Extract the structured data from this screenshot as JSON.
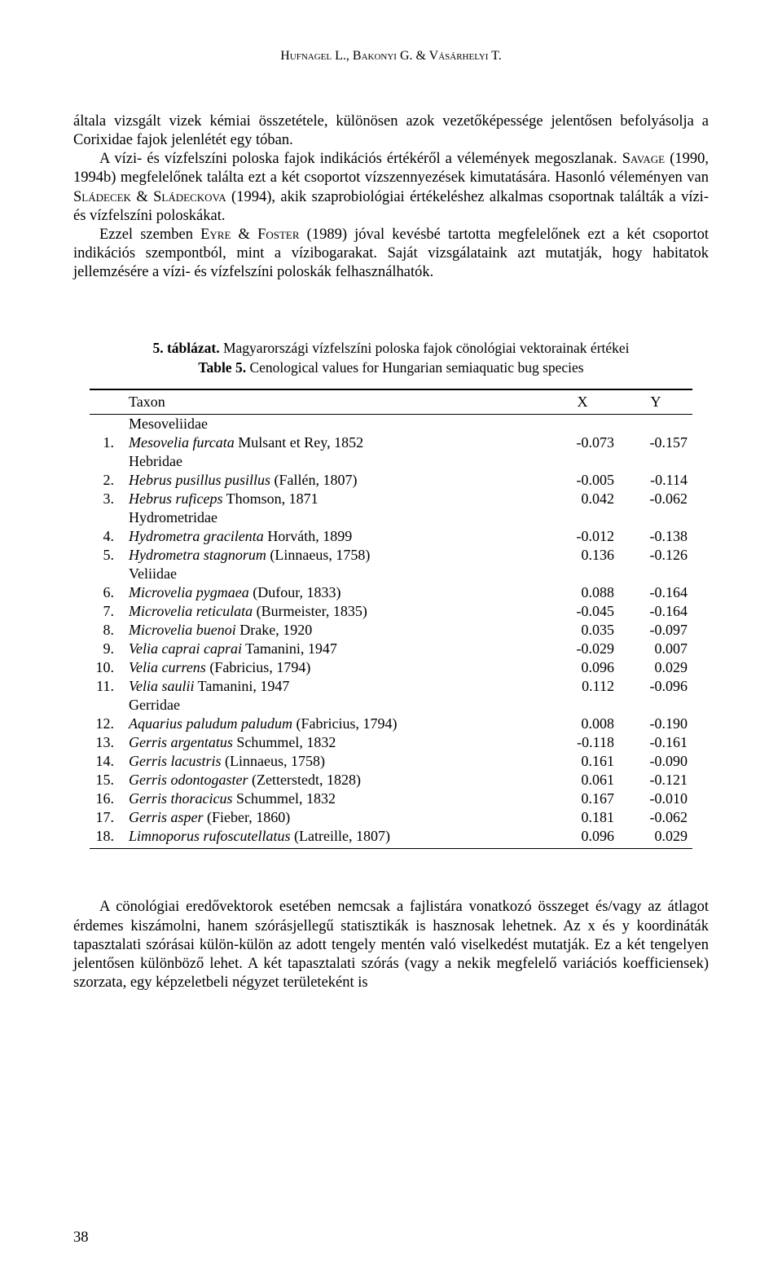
{
  "header": {
    "running": "Hufnagel L., Bakonyi G. & Vásárhelyi T."
  },
  "paragraphs": {
    "p1": "általa vizsgált vizek kémiai összetétele, különösen azok vezetőképessége jelentősen befolyásolja a Corixidae fajok jelenlétét egy tóban.",
    "p2_a": "A vízi- és vízfelszíni poloska fajok indikációs értékéről a vélemények megoszlanak. ",
    "p2_b": "Savage",
    "p2_c": " (1990, 1994b) megfelelőnek találta ezt a két csoportot vízszennyezések kimutatására. Hasonló véleményen van ",
    "p2_d": "Sládecek & Sládeckova",
    "p2_e": " (1994), akik szaprobiológiai értékeléshez alkalmas csoportnak találták a vízi- és vízfelszíni poloskákat.",
    "p3_a": "Ezzel szemben ",
    "p3_b": "Eyre & Foster",
    "p3_c": " (1989) jóval kevésbé tartotta megfelelőnek ezt a két csoportot indikációs szempontból, mint a vízibogarakat. Saját vizsgálataink azt mutatják, hogy habitatok jellemzésére a vízi- és vízfelszíni poloskák felhasználhatók."
  },
  "table": {
    "title_bold": "5. táblázat.",
    "title_rest": " Magyarországi vízfelszíni poloska fajok cönológiai vektorainak értékei",
    "subtitle_bold": "Table 5.",
    "subtitle_rest": " Cenological values for Hungarian semiaquatic bug species",
    "headers": {
      "taxon": "Taxon",
      "x": "X",
      "y": "Y"
    },
    "rows": [
      {
        "kind": "family",
        "taxon_plain": "Mesoveliidae"
      },
      {
        "kind": "species",
        "num": "1.",
        "species": "Mesovelia furcata",
        "auth": " Mulsant et Rey, 1852",
        "x": "-0.073",
        "y": "-0.157"
      },
      {
        "kind": "family",
        "taxon_plain": "Hebridae"
      },
      {
        "kind": "species",
        "num": "2.",
        "species": "Hebrus pusillus pusillus",
        "auth": " (Fallén, 1807)",
        "x": "-0.005",
        "y": "-0.114"
      },
      {
        "kind": "species",
        "num": "3.",
        "species": "Hebrus ruficeps",
        "auth": " Thomson, 1871",
        "x": "0.042",
        "y": "-0.062"
      },
      {
        "kind": "family",
        "taxon_plain": "Hydrometridae"
      },
      {
        "kind": "species",
        "num": "4.",
        "species": "Hydrometra gracilenta",
        "auth": " Horváth, 1899",
        "x": "-0.012",
        "y": "-0.138"
      },
      {
        "kind": "species",
        "num": "5.",
        "species": "Hydrometra stagnorum",
        "auth": " (Linnaeus, 1758)",
        "x": "0.136",
        "y": "-0.126"
      },
      {
        "kind": "family",
        "taxon_plain": "Veliidae"
      },
      {
        "kind": "species",
        "num": "6.",
        "species": "Microvelia pygmaea",
        "auth": " (Dufour, 1833)",
        "x": "0.088",
        "y": "-0.164"
      },
      {
        "kind": "species",
        "num": "7.",
        "species": "Microvelia reticulata",
        "auth": " (Burmeister, 1835)",
        "x": "-0.045",
        "y": "-0.164"
      },
      {
        "kind": "species",
        "num": "8.",
        "species": "Microvelia buenoi",
        "auth": " Drake, 1920",
        "x": "0.035",
        "y": "-0.097"
      },
      {
        "kind": "species",
        "num": "9.",
        "species": "Velia caprai caprai",
        "auth": " Tamanini, 1947",
        "x": "-0.029",
        "y": "0.007"
      },
      {
        "kind": "species",
        "num": "10.",
        "species": "Velia currens",
        "auth": " (Fabricius, 1794)",
        "x": "0.096",
        "y": "0.029"
      },
      {
        "kind": "species",
        "num": "11.",
        "species": "Velia saulii",
        "auth": " Tamanini, 1947",
        "x": "0.112",
        "y": "-0.096"
      },
      {
        "kind": "family",
        "taxon_plain": "Gerridae"
      },
      {
        "kind": "species",
        "num": "12.",
        "species": "Aquarius paludum paludum",
        "auth": " (Fabricius, 1794)",
        "x": "0.008",
        "y": "-0.190"
      },
      {
        "kind": "species",
        "num": "13.",
        "species": "Gerris argentatus",
        "auth": " Schummel, 1832",
        "x": "-0.118",
        "y": "-0.161"
      },
      {
        "kind": "species",
        "num": "14.",
        "species": "Gerris lacustris",
        "auth": " (Linnaeus, 1758)",
        "x": "0.161",
        "y": "-0.090"
      },
      {
        "kind": "species",
        "num": "15.",
        "species": "Gerris odontogaster",
        "auth": " (Zetterstedt, 1828)",
        "x": "0.061",
        "y": "-0.121"
      },
      {
        "kind": "species",
        "num": "16.",
        "species": "Gerris thoracicus",
        "auth": " Schummel, 1832",
        "x": "0.167",
        "y": "-0.010"
      },
      {
        "kind": "species",
        "num": "17.",
        "species": "Gerris asper",
        "auth": " (Fieber, 1860)",
        "x": "0.181",
        "y": "-0.062"
      },
      {
        "kind": "species",
        "num": "18.",
        "species": "Limnoporus rufoscutellatus",
        "auth": " (Latreille, 1807)",
        "x": "0.096",
        "y": "0.029"
      }
    ]
  },
  "bottom_paragraph": "A cönológiai eredővektorok esetében nemcsak a fajlistára vonatkozó összeget és/vagy az átlagot érdemes kiszámolni, hanem szórásjellegű statisztikák is hasznosak lehetnek. Az x és y koordináták tapasztalati szórásai külön-külön az adott tengely mentén való viselkedést mutatják. Ez a két tengelyen jelentősen különböző lehet. A két tapasztalati szórás (vagy a nekik megfelelő variációs koefficiensek) szorzata, egy képzeletbeli négyzet területeként is",
  "page_number": "38"
}
